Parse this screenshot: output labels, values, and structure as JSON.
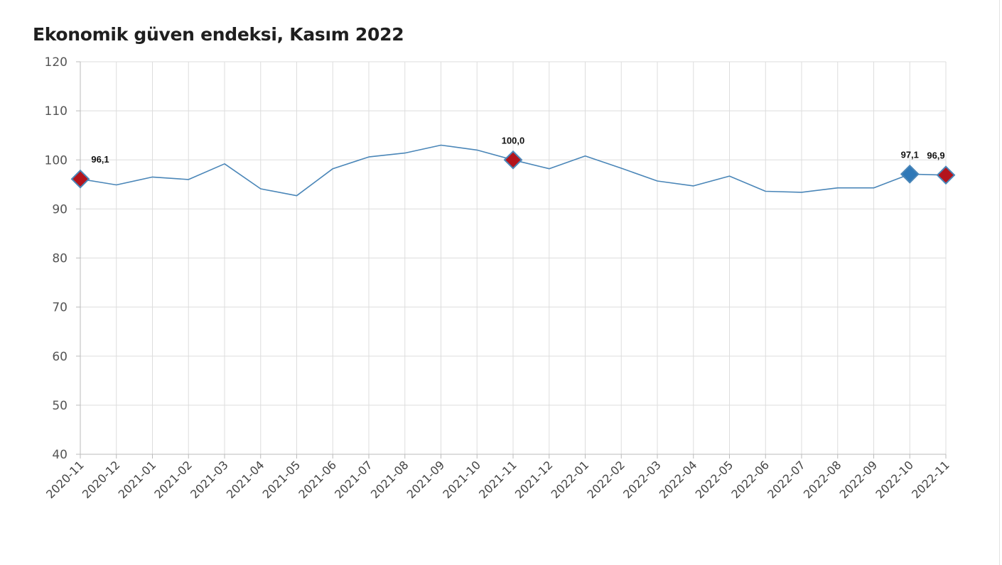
{
  "title": "Ekonomik güven endeksi, Kasım 2022",
  "colors": {
    "line": "#4a86b8",
    "highlight_red": "#b3141c",
    "highlight_blue": "#2f78b7",
    "grid": "#dddddd",
    "axis": "#bbbbbb"
  },
  "chart_data": {
    "type": "line",
    "title": "Ekonomik güven endeksi, Kasım 2022",
    "xlabel": "",
    "ylabel": "",
    "ylim": [
      40,
      120
    ],
    "yticks": [
      40,
      50,
      60,
      70,
      80,
      90,
      100,
      110,
      120
    ],
    "grid": true,
    "categories": [
      "2020-11",
      "2020-12",
      "2021-01",
      "2021-02",
      "2021-03",
      "2021-04",
      "2021-05",
      "2021-06",
      "2021-07",
      "2021-08",
      "2021-09",
      "2021-10",
      "2021-11",
      "2021-12",
      "2022-01",
      "2022-02",
      "2022-03",
      "2022-04",
      "2022-05",
      "2022-06",
      "2022-07",
      "2022-08",
      "2022-09",
      "2022-10",
      "2022-11"
    ],
    "series": [
      {
        "values": [
          96.1,
          94.9,
          96.5,
          96.0,
          99.2,
          94.1,
          92.7,
          98.2,
          100.6,
          101.4,
          103.0,
          102.0,
          100.0,
          98.2,
          100.8,
          98.3,
          95.7,
          94.7,
          96.7,
          93.6,
          93.4,
          94.3,
          94.3,
          97.1,
          96.9
        ]
      }
    ],
    "highlighted_points": [
      {
        "category": "2020-11",
        "value": 96.1,
        "label": "96,1",
        "color": "red"
      },
      {
        "category": "2021-11",
        "value": 100.0,
        "label": "100,0",
        "color": "red"
      },
      {
        "category": "2022-10",
        "value": 97.1,
        "label": "97,1",
        "color": "blue"
      },
      {
        "category": "2022-11",
        "value": 96.9,
        "label": "96,9",
        "color": "red"
      }
    ]
  }
}
